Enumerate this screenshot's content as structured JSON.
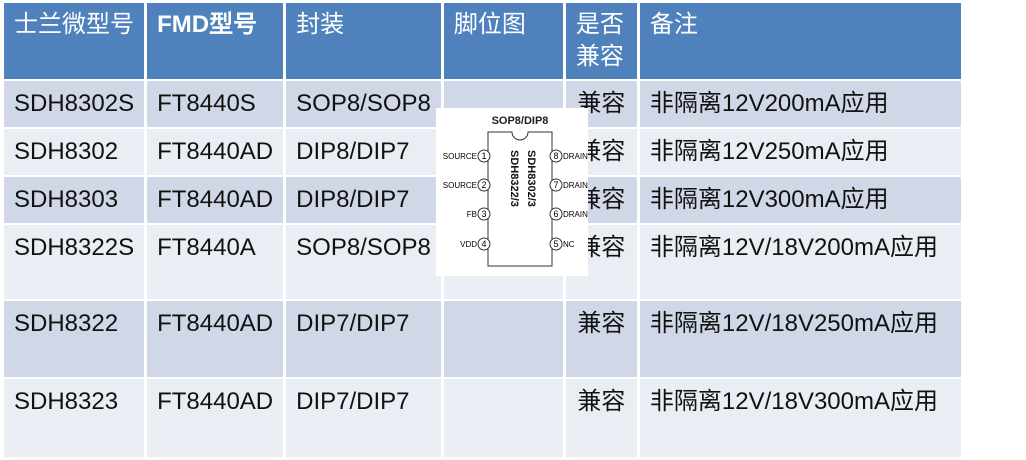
{
  "headers": [
    "士兰微型号",
    "FMD型号",
    "封装",
    "脚位图",
    "是否兼容",
    "备注"
  ],
  "rows": [
    {
      "sl": "SDH8302S",
      "fmd": "FT8440S",
      "pkg": "SOP8/SOP8",
      "compat": "兼容",
      "note": "非隔离12V200mA应用"
    },
    {
      "sl": "SDH8302",
      "fmd": "FT8440AD",
      "pkg": "DIP8/DIP7",
      "compat": "兼容",
      "note": "非隔离12V250mA应用"
    },
    {
      "sl": "SDH8303",
      "fmd": "FT8440AD",
      "pkg": "DIP8/DIP7",
      "compat": "兼容",
      "note": "非隔离12V300mA应用"
    },
    {
      "sl": "SDH8322S",
      "fmd": "FT8440A",
      "pkg": "SOP8/SOP8",
      "compat": "兼容",
      "note": "非隔离12V/18V200mA应用"
    },
    {
      "sl": "SDH8322",
      "fmd": "FT8440AD",
      "pkg": "DIP7/DIP7",
      "compat": "兼容",
      "note": "非隔离12V/18V250mA应用"
    },
    {
      "sl": "SDH8323",
      "fmd": "FT8440AD",
      "pkg": "DIP7/DIP7",
      "compat": "兼容",
      "note": "非隔离12V/18V300mA应用"
    }
  ],
  "diagram": {
    "title": "SOP8/DIP8",
    "pins_left": [
      {
        "n": "1",
        "label": "SOURCE"
      },
      {
        "n": "2",
        "label": "SOURCE"
      },
      {
        "n": "3",
        "label": "FB"
      },
      {
        "n": "4",
        "label": "VDD"
      }
    ],
    "pins_right": [
      {
        "n": "8",
        "label": "DRAIN"
      },
      {
        "n": "7",
        "label": "DRAIN"
      },
      {
        "n": "6",
        "label": "DRAIN"
      },
      {
        "n": "5",
        "label": "NC"
      }
    ],
    "chip_line1": "SDH8302/3",
    "chip_line2": "SDH8322/3"
  },
  "colors": {
    "header": "#4f81bd",
    "row_odd": "#d0d8e8",
    "row_even": "#e9edf4"
  }
}
